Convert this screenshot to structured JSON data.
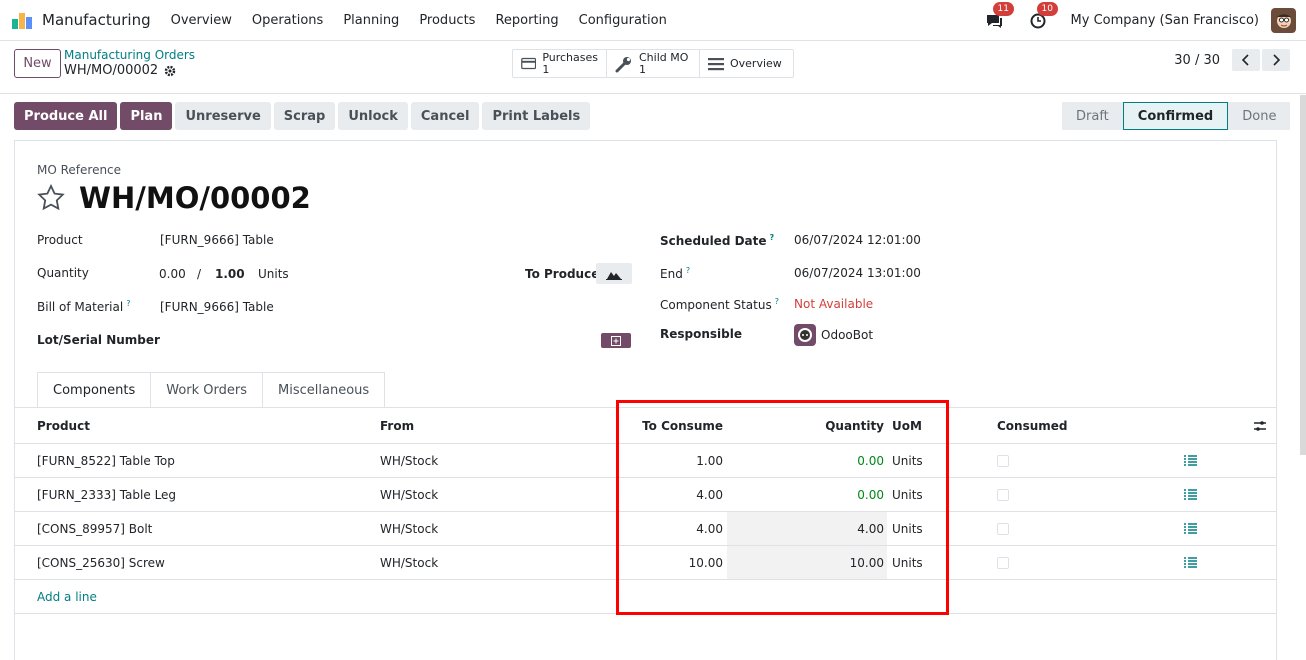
{
  "topbar": {
    "app_name": "Manufacturing",
    "menu": [
      "Overview",
      "Operations",
      "Planning",
      "Products",
      "Reporting",
      "Configuration"
    ],
    "messages_badge": "11",
    "activities_badge": "10",
    "company": "My Company (San Francisco)"
  },
  "control_panel": {
    "new_label": "New",
    "breadcrumb_parent": "Manufacturing Orders",
    "breadcrumb_current": "WH/MO/00002",
    "smart_buttons": [
      {
        "label": "Purchases",
        "count": "1",
        "icon": "credit-card-icon"
      },
      {
        "label": "Child MO",
        "count": "1",
        "icon": "wrench-icon"
      },
      {
        "label": "Overview",
        "icon": "list-icon"
      }
    ],
    "pager": "30 / 30"
  },
  "status_buttons": [
    "Produce All",
    "Plan",
    "Unreserve",
    "Scrap",
    "Unlock",
    "Cancel",
    "Print Labels"
  ],
  "stages": [
    "Draft",
    "Confirmed",
    "Done"
  ],
  "current_stage": "Confirmed",
  "form": {
    "ref_label": "MO Reference",
    "ref": "WH/MO/00002",
    "product_label": "Product",
    "product": "[FURN_9666] Table",
    "quantity_label": "Quantity",
    "qty_produced": "0.00",
    "qty_sep": "/",
    "qty_total": "1.00",
    "qty_uom": "Units",
    "to_produce_label": "To Produce",
    "bom_label": "Bill of Material",
    "bom": "[FURN_9666] Table",
    "lot_label": "Lot/Serial Number",
    "scheduled_label": "Scheduled Date",
    "scheduled": "06/07/2024 12:01:00",
    "end_label": "End",
    "end": "06/07/2024 13:01:00",
    "component_status_label": "Component Status",
    "component_status": "Not Available",
    "responsible_label": "Responsible",
    "responsible": "OdooBot",
    "help_mark": "?"
  },
  "tabs": [
    "Components",
    "Work Orders",
    "Miscellaneous"
  ],
  "table": {
    "headers": {
      "product": "Product",
      "from": "From",
      "to_consume": "To Consume",
      "quantity": "Quantity",
      "uom": "UoM",
      "consumed": "Consumed"
    },
    "rows": [
      {
        "product": "[FURN_8522] Table Top",
        "from": "WH/Stock",
        "to_consume": "1.00",
        "quantity": "0.00",
        "uom": "Units"
      },
      {
        "product": "[FURN_2333] Table Leg",
        "from": "WH/Stock",
        "to_consume": "4.00",
        "quantity": "0.00",
        "uom": "Units"
      },
      {
        "product": "[CONS_89957] Bolt",
        "from": "WH/Stock",
        "to_consume": "4.00",
        "quantity": "4.00",
        "uom": "Units"
      },
      {
        "product": "[CONS_25630] Screw",
        "from": "WH/Stock",
        "to_consume": "10.00",
        "quantity": "10.00",
        "uom": "Units"
      }
    ],
    "add_line": "Add a line"
  },
  "colors": {
    "brand": "#714b67",
    "teal": "#017e84",
    "red": "#d23f3a",
    "green": "#008818",
    "highlight": "#ff0000"
  }
}
